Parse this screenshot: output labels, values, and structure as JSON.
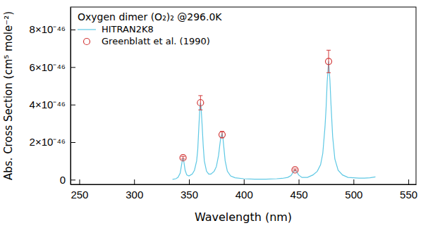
{
  "chart_data": {
    "type": "line",
    "annotations": [
      "Oxygen dimer (O₂)₂ @296.0K"
    ],
    "x_label": "Wavelength (nm)",
    "y_label": "Abs. Cross Section (cm⁵ mole⁻²)",
    "xlim": [
      242,
      557
    ],
    "xticks": [
      250,
      300,
      350,
      400,
      450,
      500,
      550
    ],
    "ylim": [
      -2.5e-47,
      9.2e-46
    ],
    "yticks": [
      0,
      {
        "value": 2e-46,
        "label": "2×10⁻⁴⁶"
      },
      {
        "value": 4e-46,
        "label": "4×10⁻⁴⁶"
      },
      {
        "value": 6e-46,
        "label": "6×10⁻⁴⁶"
      },
      {
        "value": 8e-46,
        "label": "8×10⁻⁴⁶"
      }
    ],
    "legend": "upper left",
    "series": [
      {
        "name": "HITRAN2K8",
        "type": "line",
        "color": "#5ec8e4",
        "line_style": "solid",
        "x": [
          335,
          338,
          340,
          342,
          343,
          344,
          344.6,
          345.5,
          346.5,
          348,
          350,
          353,
          355,
          357,
          358,
          359,
          360,
          360.5,
          361,
          362,
          363,
          364,
          366,
          368,
          370,
          373,
          375,
          377,
          378,
          379,
          380.2,
          381,
          382,
          383,
          385,
          388,
          392,
          400,
          410,
          420,
          430,
          435,
          440,
          443,
          445,
          446.7,
          448,
          450,
          453,
          458,
          463,
          467,
          470,
          472,
          474,
          475,
          476,
          477.3,
          478.5,
          479.5,
          481,
          483,
          486,
          490,
          495,
          500,
          505,
          510,
          515,
          520
        ],
        "values": [
          2e-48,
          5e-48,
          1.2e-47,
          3.5e-47,
          7e-47,
          1.05e-46,
          1.17e-46,
          9e-47,
          5e-47,
          2.5e-47,
          2e-47,
          3e-47,
          5e-47,
          1e-46,
          1.6e-46,
          2.8e-46,
          3.9e-46,
          4.1e-46,
          3.9e-46,
          2.9e-46,
          1.8e-46,
          1e-46,
          4.5e-47,
          3e-47,
          3e-47,
          4.5e-47,
          7e-47,
          1.3e-46,
          1.8e-46,
          2.25e-46,
          2.45e-46,
          2.2e-46,
          1.6e-46,
          1e-46,
          4.5e-47,
          2e-47,
          1e-47,
          5e-48,
          3e-48,
          3e-48,
          5e-48,
          7e-48,
          1.2e-47,
          2.2e-47,
          4e-47,
          5.2e-47,
          4.5e-47,
          2.5e-47,
          1.2e-47,
          1.2e-47,
          2.5e-47,
          4.5e-47,
          8e-47,
          1.4e-46,
          2.8e-46,
          3.8e-46,
          5.2e-46,
          6.3e-46,
          5.3e-46,
          4e-46,
          2.3e-46,
          1.1e-46,
          5e-47,
          2.5e-47,
          1.2e-47,
          1e-47,
          8e-48,
          8e-48,
          1e-47,
          1.5e-47
        ]
      },
      {
        "name": "Greenblatt et al. (1990)",
        "type": "scatter",
        "color": "#d23a3a",
        "marker": "circle",
        "x": [
          344.6,
          360.5,
          380.2,
          446.7,
          477.3
        ],
        "values": [
          1.17e-46,
          4.1e-46,
          2.4e-46,
          5.2e-47,
          6.3e-46
        ],
        "errors": [
          7e-48,
          3.8e-47,
          1.7e-47,
          5e-48,
          6e-47
        ]
      }
    ]
  }
}
